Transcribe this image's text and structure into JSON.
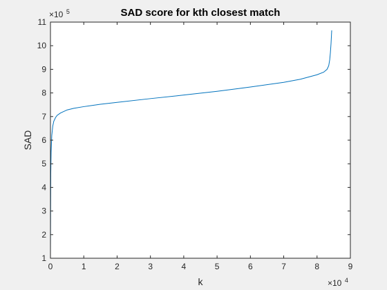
{
  "chart_data": {
    "type": "line",
    "title": "SAD score for kth closest match",
    "xlabel": "k",
    "ylabel": "SAD",
    "xlim": [
      0,
      9
    ],
    "ylim": [
      1,
      11
    ],
    "x_ticks": [
      "0",
      "1",
      "2",
      "3",
      "4",
      "5",
      "6",
      "7",
      "8",
      "9"
    ],
    "y_ticks": [
      "1",
      "2",
      "3",
      "4",
      "5",
      "6",
      "7",
      "8",
      "9",
      "10",
      "11"
    ],
    "x_multiplier": {
      "base": "×10",
      "exponent": "4"
    },
    "y_multiplier": {
      "base": "×10",
      "exponent": "5"
    },
    "grid": false,
    "line_color": "#0072bd",
    "series": [
      {
        "x": [
          0.0,
          0.005,
          0.01,
          0.02,
          0.04,
          0.07,
          0.1,
          0.15,
          0.2,
          0.3,
          0.5,
          0.7,
          1.0,
          1.5,
          2.0,
          3.0,
          4.0,
          5.0,
          6.0,
          7.0,
          7.5,
          8.0,
          8.2,
          8.3,
          8.35,
          8.38,
          8.4,
          8.42,
          8.44
        ],
        "y": [
          1.2,
          3.0,
          4.6,
          5.5,
          6.2,
          6.6,
          6.8,
          6.95,
          7.05,
          7.15,
          7.28,
          7.35,
          7.42,
          7.52,
          7.6,
          7.76,
          7.91,
          8.07,
          8.25,
          8.45,
          8.58,
          8.77,
          8.88,
          9.0,
          9.15,
          9.4,
          9.7,
          10.1,
          10.65
        ]
      }
    ]
  }
}
